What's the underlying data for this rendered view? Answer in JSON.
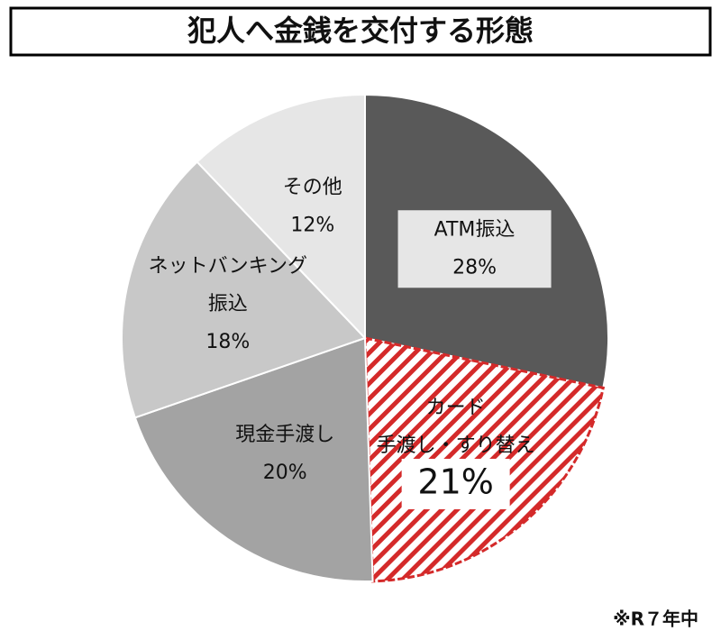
{
  "chart_data": {
    "type": "pie",
    "title": "犯人へ金銭を交付する形態",
    "note": "※R７年中",
    "categories": [
      [
        "ATM振込"
      ],
      [
        "カード",
        "手渡し・すり替え"
      ],
      [
        "現金手渡し"
      ],
      [
        "ネットバンキング",
        "振込"
      ],
      [
        "その他"
      ]
    ],
    "values": [
      28,
      21,
      20,
      18,
      12
    ],
    "value_labels": [
      "28%",
      "21%",
      "20%",
      "18%",
      "12%"
    ],
    "colors": [
      "#595959",
      "#d42a2a",
      "#a3a3a3",
      "#c8c8c8",
      "#e6e6e6"
    ],
    "patterns": [
      "solid",
      "hatch",
      "solid",
      "solid",
      "solid"
    ]
  }
}
